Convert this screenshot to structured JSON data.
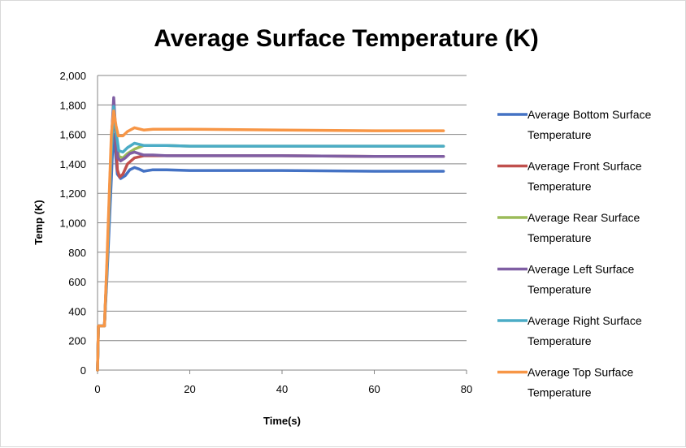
{
  "chart_data": {
    "type": "line",
    "title": "Average Surface Temperature (K)",
    "xlabel": "Time(s)",
    "ylabel": "Temp (K)",
    "xlim": [
      0,
      80
    ],
    "ylim": [
      0,
      2000
    ],
    "x_ticks": [
      "0",
      "20",
      "40",
      "60",
      "80"
    ],
    "y_ticks": [
      "0",
      "200",
      "400",
      "600",
      "800",
      "1,000",
      "1,200",
      "1,400",
      "1,600",
      "1,800",
      "2,000"
    ],
    "grid": "horizontal",
    "legend_position": "right",
    "series": [
      {
        "name": "Average Bottom Surface Temperature",
        "legend_lines": [
          "Average Bottom Surface",
          "Temperature"
        ],
        "color": "#4472c4",
        "points": [
          [
            0,
            0
          ],
          [
            0.2,
            300
          ],
          [
            1.5,
            300
          ],
          [
            2,
            600
          ],
          [
            3,
            1300
          ],
          [
            3.4,
            1600
          ],
          [
            3.8,
            1500
          ],
          [
            4.3,
            1330
          ],
          [
            5,
            1300
          ],
          [
            6,
            1320
          ],
          [
            7,
            1360
          ],
          [
            8,
            1375
          ],
          [
            9,
            1365
          ],
          [
            10,
            1350
          ],
          [
            12,
            1360
          ],
          [
            15,
            1360
          ],
          [
            20,
            1355
          ],
          [
            40,
            1355
          ],
          [
            60,
            1350
          ],
          [
            75,
            1350
          ]
        ]
      },
      {
        "name": "Average Front Surface Temperature",
        "legend_lines": [
          "Average Front Surface",
          "Temperature"
        ],
        "color": "#c0504d",
        "points": [
          [
            0,
            0
          ],
          [
            0.2,
            300
          ],
          [
            1.5,
            300
          ],
          [
            2,
            650
          ],
          [
            3,
            1550
          ],
          [
            3.5,
            1820
          ],
          [
            3.9,
            1600
          ],
          [
            4.3,
            1360
          ],
          [
            4.8,
            1310
          ],
          [
            5.5,
            1330
          ],
          [
            6.5,
            1400
          ],
          [
            8,
            1440
          ],
          [
            10,
            1455
          ],
          [
            15,
            1455
          ],
          [
            20,
            1455
          ],
          [
            40,
            1455
          ],
          [
            60,
            1450
          ],
          [
            75,
            1450
          ]
        ]
      },
      {
        "name": "Average Rear Surface Temperature",
        "legend_lines": [
          "Average Rear Surface",
          "Temperature"
        ],
        "color": "#9bbb59",
        "points": [
          [
            0,
            0
          ],
          [
            0.2,
            300
          ],
          [
            1.5,
            300
          ],
          [
            2,
            650
          ],
          [
            3,
            1500
          ],
          [
            3.5,
            1780
          ],
          [
            4,
            1600
          ],
          [
            4.6,
            1450
          ],
          [
            5.5,
            1440
          ],
          [
            6.5,
            1470
          ],
          [
            8,
            1500
          ],
          [
            10,
            1525
          ],
          [
            15,
            1525
          ],
          [
            20,
            1520
          ],
          [
            40,
            1520
          ],
          [
            60,
            1520
          ],
          [
            75,
            1520
          ]
        ]
      },
      {
        "name": "Average Left Surface Temperature",
        "legend_lines": [
          "Average Left Surface",
          "Temperature"
        ],
        "color": "#7f5ea3",
        "points": [
          [
            0,
            0
          ],
          [
            0.2,
            300
          ],
          [
            1.5,
            300
          ],
          [
            2,
            650
          ],
          [
            3,
            1550
          ],
          [
            3.5,
            1850
          ],
          [
            3.9,
            1650
          ],
          [
            4.4,
            1440
          ],
          [
            5,
            1420
          ],
          [
            6,
            1440
          ],
          [
            7,
            1470
          ],
          [
            8,
            1480
          ],
          [
            10,
            1460
          ],
          [
            12,
            1460
          ],
          [
            15,
            1455
          ],
          [
            20,
            1455
          ],
          [
            40,
            1455
          ],
          [
            60,
            1450
          ],
          [
            75,
            1450
          ]
        ]
      },
      {
        "name": "Average Right Surface Temperature",
        "legend_lines": [
          "Average Right Surface",
          "Temperature"
        ],
        "color": "#4bacc6",
        "points": [
          [
            0,
            0
          ],
          [
            0.2,
            300
          ],
          [
            1.5,
            300
          ],
          [
            2,
            650
          ],
          [
            3,
            1500
          ],
          [
            3.5,
            1790
          ],
          [
            4,
            1620
          ],
          [
            4.6,
            1490
          ],
          [
            5.5,
            1480
          ],
          [
            6.5,
            1510
          ],
          [
            8,
            1540
          ],
          [
            10,
            1525
          ],
          [
            12,
            1525
          ],
          [
            15,
            1525
          ],
          [
            20,
            1520
          ],
          [
            40,
            1520
          ],
          [
            60,
            1520
          ],
          [
            75,
            1520
          ]
        ]
      },
      {
        "name": "Average Top Surface Temperature",
        "legend_lines": [
          "Average Top Surface",
          "Temperature"
        ],
        "color": "#f79646",
        "points": [
          [
            0,
            0
          ],
          [
            0.2,
            300
          ],
          [
            1.5,
            300
          ],
          [
            2,
            700
          ],
          [
            3,
            1600
          ],
          [
            3.5,
            1760
          ],
          [
            4,
            1660
          ],
          [
            4.5,
            1590
          ],
          [
            5.5,
            1590
          ],
          [
            6.5,
            1620
          ],
          [
            8,
            1645
          ],
          [
            10,
            1630
          ],
          [
            12,
            1635
          ],
          [
            15,
            1635
          ],
          [
            20,
            1635
          ],
          [
            40,
            1630
          ],
          [
            60,
            1625
          ],
          [
            75,
            1625
          ]
        ]
      }
    ]
  }
}
